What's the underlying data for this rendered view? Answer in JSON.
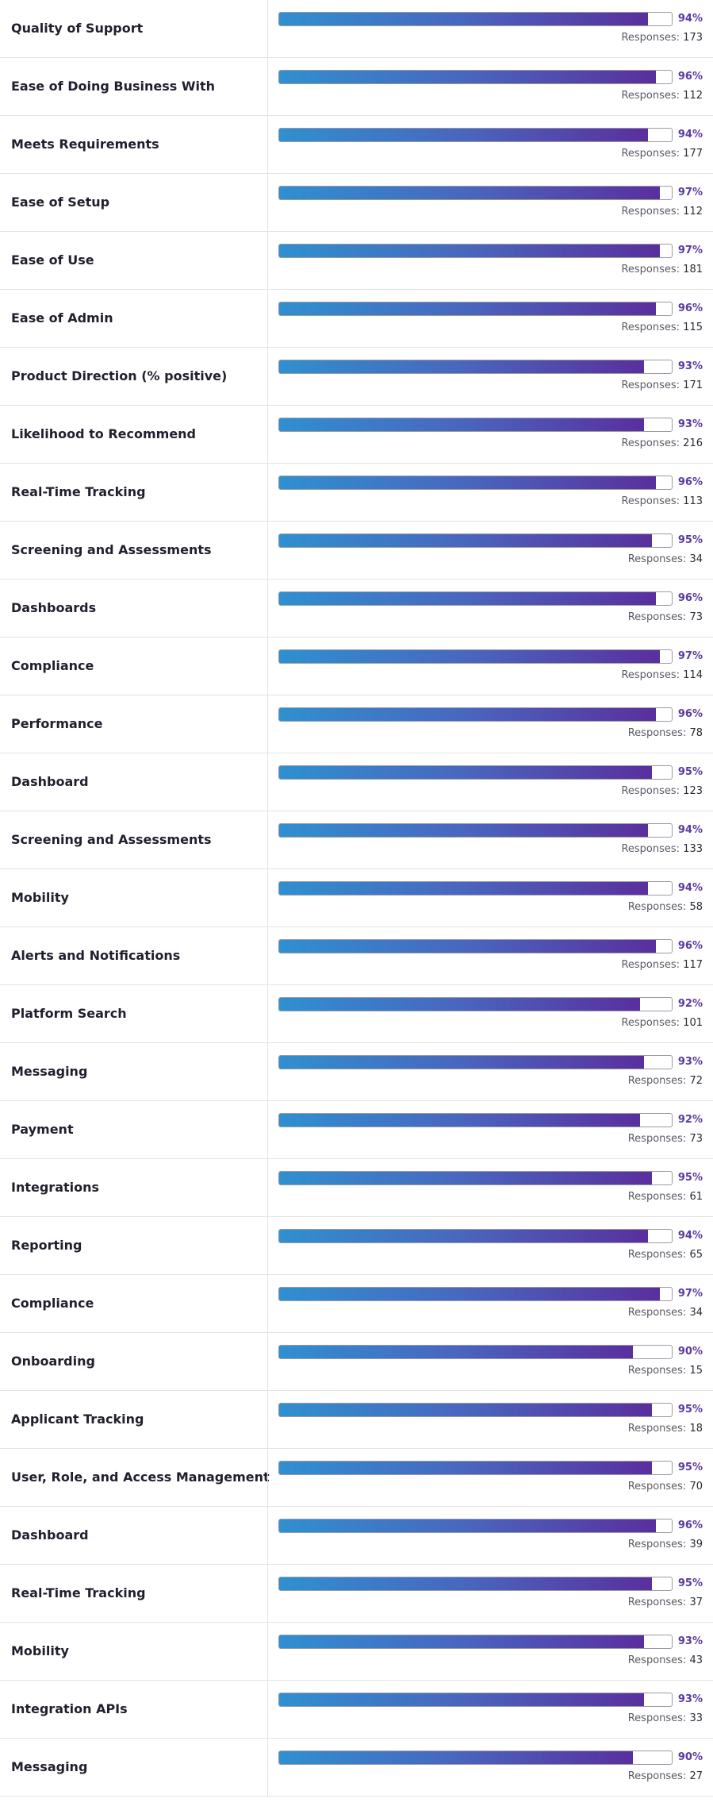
{
  "colors": {
    "bar_gradient_start": "#2f90d0",
    "bar_gradient_end": "#5a2f9e",
    "percent_text": "#5b3a9e"
  },
  "responses_label": "Responses: ",
  "rows": [
    {
      "label": "Quality of Support",
      "percent": "94%",
      "value": 94,
      "responses": "173"
    },
    {
      "label": "Ease of Doing Business With",
      "percent": "96%",
      "value": 96,
      "responses": "112"
    },
    {
      "label": "Meets Requirements",
      "percent": "94%",
      "value": 94,
      "responses": "177"
    },
    {
      "label": "Ease of Setup",
      "percent": "97%",
      "value": 97,
      "responses": "112"
    },
    {
      "label": "Ease of Use",
      "percent": "97%",
      "value": 97,
      "responses": "181"
    },
    {
      "label": "Ease of Admin",
      "percent": "96%",
      "value": 96,
      "responses": "115"
    },
    {
      "label": "Product Direction (% positive)",
      "percent": "93%",
      "value": 93,
      "responses": "171"
    },
    {
      "label": "Likelihood to Recommend",
      "percent": "93%",
      "value": 93,
      "responses": "216"
    },
    {
      "label": "Real-Time Tracking",
      "percent": "96%",
      "value": 96,
      "responses": "113"
    },
    {
      "label": "Screening and Assessments",
      "percent": "95%",
      "value": 95,
      "responses": "34"
    },
    {
      "label": "Dashboards",
      "percent": "96%",
      "value": 96,
      "responses": "73"
    },
    {
      "label": "Compliance",
      "percent": "97%",
      "value": 97,
      "responses": "114"
    },
    {
      "label": "Performance",
      "percent": "96%",
      "value": 96,
      "responses": "78"
    },
    {
      "label": "Dashboard",
      "percent": "95%",
      "value": 95,
      "responses": "123"
    },
    {
      "label": "Screening and Assessments",
      "percent": "94%",
      "value": 94,
      "responses": "133"
    },
    {
      "label": "Mobility",
      "percent": "94%",
      "value": 94,
      "responses": "58"
    },
    {
      "label": "Alerts and Notifications",
      "percent": "96%",
      "value": 96,
      "responses": "117"
    },
    {
      "label": "Platform Search",
      "percent": "92%",
      "value": 92,
      "responses": "101"
    },
    {
      "label": "Messaging",
      "percent": "93%",
      "value": 93,
      "responses": "72"
    },
    {
      "label": "Payment",
      "percent": "92%",
      "value": 92,
      "responses": "73"
    },
    {
      "label": "Integrations",
      "percent": "95%",
      "value": 95,
      "responses": "61"
    },
    {
      "label": "Reporting",
      "percent": "94%",
      "value": 94,
      "responses": "65"
    },
    {
      "label": "Compliance",
      "percent": "97%",
      "value": 97,
      "responses": "34"
    },
    {
      "label": "Onboarding",
      "percent": "90%",
      "value": 90,
      "responses": "15"
    },
    {
      "label": "Applicant Tracking",
      "percent": "95%",
      "value": 95,
      "responses": "18"
    },
    {
      "label": "User, Role, and Access Management",
      "percent": "95%",
      "value": 95,
      "responses": "70"
    },
    {
      "label": "Dashboard",
      "percent": "96%",
      "value": 96,
      "responses": "39"
    },
    {
      "label": "Real-Time Tracking",
      "percent": "95%",
      "value": 95,
      "responses": "37"
    },
    {
      "label": "Mobility",
      "percent": "93%",
      "value": 93,
      "responses": "43"
    },
    {
      "label": "Integration APIs",
      "percent": "93%",
      "value": 93,
      "responses": "33"
    },
    {
      "label": "Messaging",
      "percent": "90%",
      "value": 90,
      "responses": "27"
    }
  ]
}
